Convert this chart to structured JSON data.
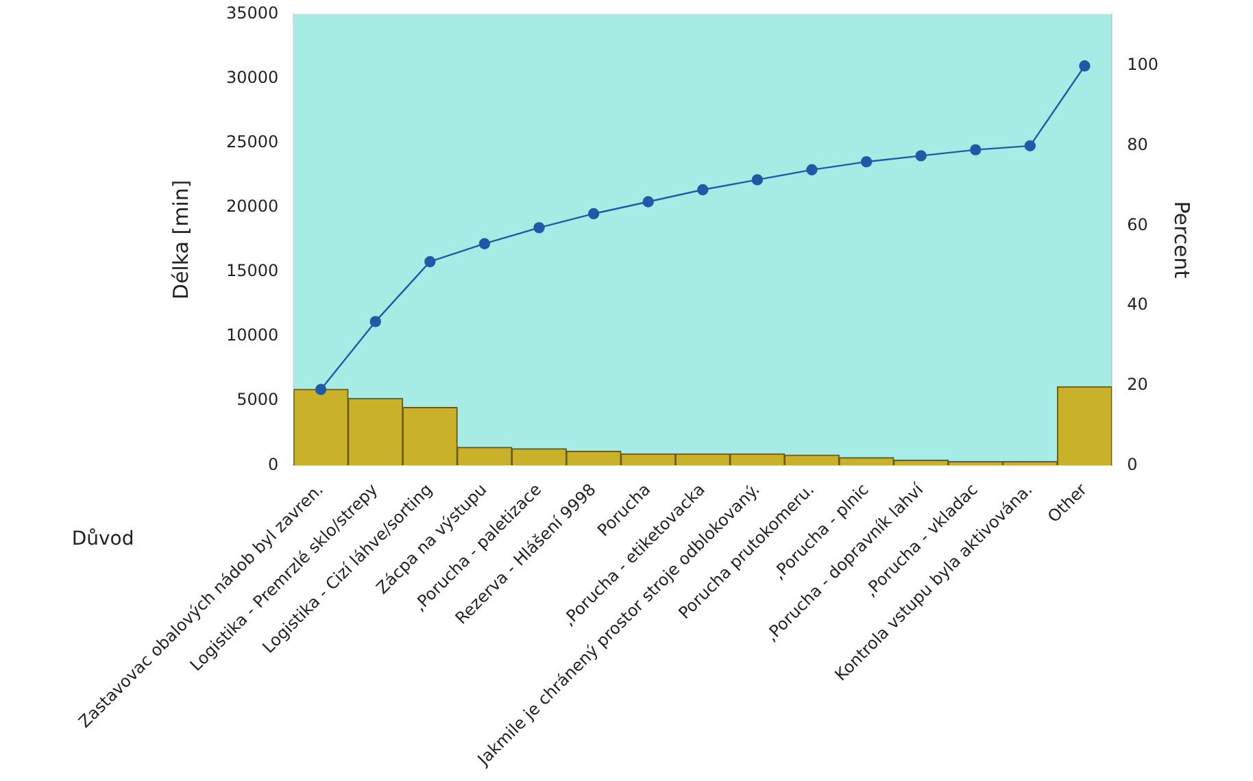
{
  "chart_data": {
    "type": "bar",
    "xlabel": "Důvod",
    "ylabel": "Délka [min]",
    "y2label": "Percent",
    "categories": [
      "Zastavovac obalových nádob byl zavren.",
      "Logistika - Premrzlé sklo/strepy",
      "Logistika - Cizí láhve/sorting",
      "Zácpa na výstupu",
      ",Porucha - paletizace",
      "Rezerva - Hlášení 9998",
      "Porucha",
      ",Porucha - etiketovacka",
      "Jakmile je chránený prostor stroje odblokovaný.",
      "Porucha prutokomeru.",
      ",Porucha - plnic",
      ",Porucha - dopravník lahví",
      ",Porucha - vkladac",
      "Kontrola vstupu byla aktivována.",
      "Other"
    ],
    "series": [
      {
        "color": "#c9b12a",
        "values": [
          5900,
          5200,
          4500,
          1400,
          1300,
          1100,
          900,
          900,
          900,
          800,
          600,
          400,
          300,
          300,
          6100
        ]
      },
      {
        "type": "line",
        "axis": "y2",
        "color": "#1f5aa6",
        "values": [
          19,
          36,
          51,
          55.5,
          59.5,
          63,
          66,
          69,
          71.5,
          74,
          76,
          77.5,
          79,
          80,
          100
        ]
      }
    ],
    "ylim": [
      0,
      35000
    ],
    "yticks": [
      0,
      5000,
      10000,
      15000,
      20000,
      25000,
      30000,
      35000
    ],
    "y2lim": [
      0,
      113
    ],
    "y2ticks": [
      0,
      20,
      40,
      60,
      80,
      100
    ],
    "grid": false,
    "legend": false,
    "marker": "circle",
    "line_style": "solid"
  }
}
